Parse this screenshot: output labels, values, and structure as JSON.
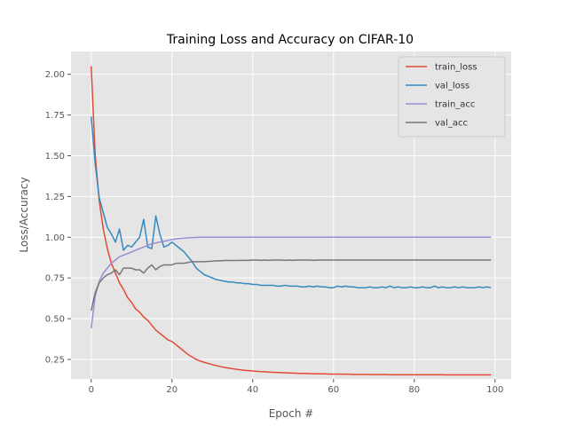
{
  "chart_data": {
    "type": "line",
    "title": "Training Loss and Accuracy on CIFAR-10",
    "xlabel": "Epoch #",
    "ylabel": "Loss/Accuracy",
    "xlim": [
      -5,
      104
    ],
    "ylim": [
      0.13,
      2.14
    ],
    "xticks": [
      0,
      20,
      40,
      60,
      80,
      100
    ],
    "yticks": [
      0.25,
      0.5,
      0.75,
      1.0,
      1.25,
      1.5,
      1.75,
      2.0
    ],
    "ytick_labels": [
      "0.25",
      "0.50",
      "0.75",
      "1.00",
      "1.25",
      "1.50",
      "1.75",
      "2.00"
    ],
    "xtick_labels": [
      "0",
      "20",
      "40",
      "60",
      "80",
      "100"
    ],
    "grid": true,
    "legend_position": "top-right",
    "series": [
      {
        "name": "train_loss",
        "color": "#e24a33",
        "values": [
          2.05,
          1.5,
          1.22,
          1.05,
          0.93,
          0.84,
          0.78,
          0.72,
          0.68,
          0.63,
          0.6,
          0.56,
          0.54,
          0.51,
          0.49,
          0.46,
          0.43,
          0.41,
          0.39,
          0.37,
          0.36,
          0.34,
          0.32,
          0.3,
          0.28,
          0.265,
          0.25,
          0.24,
          0.232,
          0.225,
          0.218,
          0.212,
          0.206,
          0.201,
          0.197,
          0.193,
          0.189,
          0.186,
          0.183,
          0.181,
          0.179,
          0.177,
          0.175,
          0.174,
          0.172,
          0.171,
          0.17,
          0.169,
          0.168,
          0.167,
          0.166,
          0.165,
          0.164,
          0.164,
          0.163,
          0.162,
          0.162,
          0.161,
          0.161,
          0.16,
          0.16,
          0.16,
          0.159,
          0.159,
          0.159,
          0.158,
          0.158,
          0.158,
          0.158,
          0.157,
          0.157,
          0.157,
          0.157,
          0.157,
          0.156,
          0.156,
          0.156,
          0.156,
          0.156,
          0.156,
          0.156,
          0.156,
          0.156,
          0.156,
          0.156,
          0.156,
          0.156,
          0.156,
          0.155,
          0.155,
          0.155,
          0.155,
          0.155,
          0.155,
          0.155,
          0.155,
          0.155,
          0.155,
          0.155,
          0.155
        ]
      },
      {
        "name": "val_loss",
        "color": "#348abd",
        "values": [
          1.74,
          1.45,
          1.24,
          1.15,
          1.06,
          1.02,
          0.97,
          1.05,
          0.92,
          0.95,
          0.94,
          0.97,
          1.0,
          1.11,
          0.94,
          0.93,
          1.13,
          1.02,
          0.94,
          0.95,
          0.97,
          0.95,
          0.93,
          0.91,
          0.88,
          0.85,
          0.81,
          0.79,
          0.77,
          0.76,
          0.75,
          0.74,
          0.735,
          0.73,
          0.725,
          0.725,
          0.72,
          0.72,
          0.715,
          0.715,
          0.71,
          0.71,
          0.705,
          0.705,
          0.705,
          0.705,
          0.7,
          0.7,
          0.705,
          0.7,
          0.7,
          0.7,
          0.695,
          0.695,
          0.7,
          0.695,
          0.7,
          0.695,
          0.695,
          0.69,
          0.69,
          0.7,
          0.695,
          0.7,
          0.695,
          0.695,
          0.69,
          0.69,
          0.69,
          0.695,
          0.69,
          0.69,
          0.695,
          0.69,
          0.7,
          0.69,
          0.695,
          0.69,
          0.69,
          0.695,
          0.69,
          0.69,
          0.695,
          0.69,
          0.69,
          0.7,
          0.69,
          0.695,
          0.69,
          0.69,
          0.695,
          0.69,
          0.695,
          0.69,
          0.69,
          0.69,
          0.695,
          0.69,
          0.695,
          0.69
        ]
      },
      {
        "name": "train_acc",
        "color": "#988ed5",
        "values": [
          0.44,
          0.64,
          0.73,
          0.78,
          0.81,
          0.84,
          0.86,
          0.88,
          0.89,
          0.9,
          0.91,
          0.92,
          0.93,
          0.94,
          0.95,
          0.96,
          0.965,
          0.97,
          0.975,
          0.98,
          0.985,
          0.99,
          0.993,
          0.995,
          0.997,
          0.998,
          0.999,
          1.0,
          1.0,
          1.0,
          1.0,
          1.0,
          1.0,
          1.0,
          1.0,
          1.0,
          1.0,
          1.0,
          1.0,
          1.0,
          1.0,
          1.0,
          1.0,
          1.0,
          1.0,
          1.0,
          1.0,
          1.0,
          1.0,
          1.0,
          1.0,
          1.0,
          1.0,
          1.0,
          1.0,
          1.0,
          1.0,
          1.0,
          1.0,
          1.0,
          1.0,
          1.0,
          1.0,
          1.0,
          1.0,
          1.0,
          1.0,
          1.0,
          1.0,
          1.0,
          1.0,
          1.0,
          1.0,
          1.0,
          1.0,
          1.0,
          1.0,
          1.0,
          1.0,
          1.0,
          1.0,
          1.0,
          1.0,
          1.0,
          1.0,
          1.0,
          1.0,
          1.0,
          1.0,
          1.0,
          1.0,
          1.0,
          1.0,
          1.0,
          1.0,
          1.0,
          1.0,
          1.0,
          1.0,
          1.0
        ]
      },
      {
        "name": "val_acc",
        "color": "#777777",
        "values": [
          0.55,
          0.66,
          0.72,
          0.75,
          0.77,
          0.78,
          0.8,
          0.77,
          0.81,
          0.81,
          0.81,
          0.8,
          0.8,
          0.78,
          0.81,
          0.83,
          0.8,
          0.82,
          0.83,
          0.83,
          0.83,
          0.84,
          0.84,
          0.84,
          0.845,
          0.85,
          0.85,
          0.85,
          0.85,
          0.852,
          0.853,
          0.855,
          0.855,
          0.857,
          0.857,
          0.857,
          0.857,
          0.858,
          0.858,
          0.858,
          0.86,
          0.86,
          0.858,
          0.86,
          0.858,
          0.86,
          0.86,
          0.86,
          0.858,
          0.86,
          0.858,
          0.86,
          0.86,
          0.86,
          0.86,
          0.858,
          0.86,
          0.86,
          0.86,
          0.86,
          0.86,
          0.86,
          0.86,
          0.86,
          0.86,
          0.86,
          0.86,
          0.86,
          0.86,
          0.86,
          0.86,
          0.86,
          0.86,
          0.86,
          0.86,
          0.86,
          0.86,
          0.86,
          0.86,
          0.86,
          0.86,
          0.86,
          0.86,
          0.86,
          0.86,
          0.86,
          0.86,
          0.86,
          0.86,
          0.86,
          0.86,
          0.86,
          0.86,
          0.86,
          0.86,
          0.86,
          0.86,
          0.86,
          0.86,
          0.86
        ]
      }
    ]
  }
}
